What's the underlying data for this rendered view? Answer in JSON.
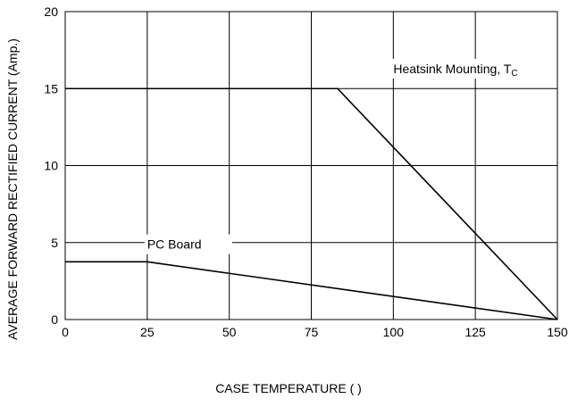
{
  "chart_data": {
    "type": "line",
    "title": "",
    "xlabel": "CASE TEMPERATURE (   )",
    "ylabel": "AVERAGE FORWARD RECTIFIED CURRENT (Amp.)",
    "xlim": [
      0,
      150
    ],
    "ylim": [
      0,
      20
    ],
    "x_ticks": [
      0,
      25,
      50,
      75,
      100,
      125,
      150
    ],
    "y_ticks": [
      0,
      5,
      10,
      15,
      20
    ],
    "grid": true,
    "series": [
      {
        "name": "Heatsink Mounting, TC",
        "points": [
          [
            0,
            15
          ],
          [
            83,
            15
          ],
          [
            150,
            0
          ]
        ]
      },
      {
        "name": "PC Board",
        "points": [
          [
            0,
            3.75
          ],
          [
            25,
            3.75
          ],
          [
            150,
            0
          ]
        ]
      }
    ],
    "annotations": [
      {
        "main": "Heatsink Mounting, T",
        "sub": "C",
        "x": 100,
        "y": 16
      },
      {
        "main": "PC Board",
        "sub": "",
        "x": 25,
        "y": 4.6
      }
    ],
    "colors": {
      "line": "#000000",
      "grid": "#000000",
      "background": "#ffffff"
    }
  }
}
